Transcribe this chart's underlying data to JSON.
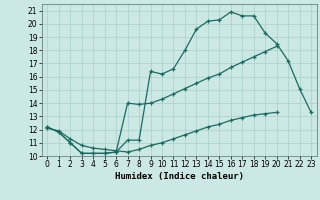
{
  "xlabel": "Humidex (Indice chaleur)",
  "bg_color": "#cce8e4",
  "grid_color": "#aacfcb",
  "line_color": "#1a6b60",
  "xlim": [
    -0.5,
    23.5
  ],
  "ylim": [
    10,
    21.5
  ],
  "yticks": [
    10,
    11,
    12,
    13,
    14,
    15,
    16,
    17,
    18,
    19,
    20,
    21
  ],
  "xticks": [
    0,
    1,
    2,
    3,
    4,
    5,
    6,
    7,
    8,
    9,
    10,
    11,
    12,
    13,
    14,
    15,
    16,
    17,
    18,
    19,
    20,
    21,
    22,
    23
  ],
  "line1_x": [
    0,
    1,
    2,
    3,
    4,
    5,
    6,
    7,
    8,
    9,
    10,
    11,
    12,
    13,
    14,
    15,
    16,
    17,
    18,
    19,
    20,
    21,
    22,
    23
  ],
  "line1_y": [
    12.2,
    11.8,
    11.0,
    10.2,
    10.2,
    10.2,
    10.3,
    11.2,
    11.2,
    16.4,
    16.2,
    16.6,
    18.0,
    19.6,
    20.2,
    20.3,
    20.9,
    20.6,
    20.6,
    19.3,
    18.5,
    17.2,
    15.1,
    13.3
  ],
  "line2_x": [
    0,
    1,
    2,
    3,
    4,
    5,
    6,
    7,
    8,
    9,
    10,
    11,
    12,
    13,
    14,
    15,
    16,
    17,
    18,
    19,
    20,
    21,
    22,
    23
  ],
  "line2_y": [
    12.2,
    11.8,
    11.0,
    10.2,
    10.2,
    10.2,
    10.3,
    14.0,
    13.9,
    14.0,
    14.3,
    14.7,
    15.1,
    15.5,
    15.9,
    16.2,
    16.7,
    17.1,
    17.5,
    17.9,
    18.3,
    null,
    null,
    null
  ],
  "line3_x": [
    0,
    1,
    2,
    3,
    4,
    5,
    6,
    7,
    8,
    9,
    10,
    11,
    12,
    13,
    14,
    15,
    16,
    17,
    18,
    19,
    20,
    21,
    22,
    23
  ],
  "line3_y": [
    12.1,
    11.9,
    11.3,
    10.8,
    10.6,
    10.5,
    10.4,
    10.3,
    10.5,
    10.8,
    11.0,
    11.3,
    11.6,
    11.9,
    12.2,
    12.4,
    12.7,
    12.9,
    13.1,
    13.2,
    13.3,
    null,
    null,
    null
  ]
}
